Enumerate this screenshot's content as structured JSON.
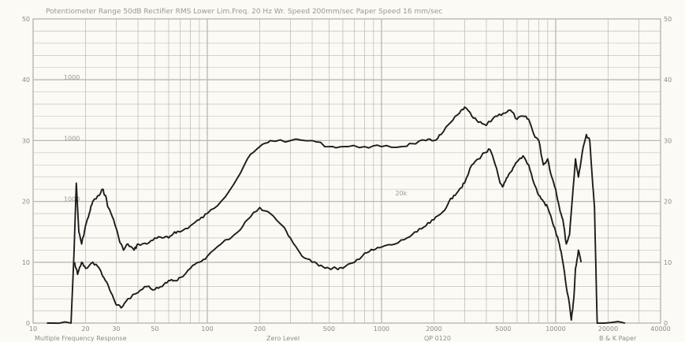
{
  "header": {
    "text": "Potentiometer Range 50dB Rectifier RMS Lower Lim.Freq. 20 Hz Wr. Speed 200mm/sec Paper Speed 16 mm/sec"
  },
  "footer": {
    "left": "Multiple Frequency Response",
    "center": "Zero Level",
    "code": "QP 0120",
    "right": "B & K Paper"
  },
  "colors": {
    "paper": "#fbfaf4",
    "grid": "#b9b9ae",
    "trace": "#1c1c1c"
  },
  "chart_data": {
    "type": "line",
    "title": "",
    "xlabel": "",
    "ylabel": "",
    "x_scale": "log",
    "xlim": [
      10,
      40000
    ],
    "ylim": [
      0,
      50
    ],
    "grid": true,
    "x_ticks": [
      {
        "value": 10,
        "label": "10"
      },
      {
        "value": 20,
        "label": "20"
      },
      {
        "value": 30,
        "label": "30"
      },
      {
        "value": 50,
        "label": "50"
      },
      {
        "value": 100,
        "label": "100"
      },
      {
        "value": 200,
        "label": "200"
      },
      {
        "value": 500,
        "label": "500"
      },
      {
        "value": 1000,
        "label": "1000"
      },
      {
        "value": 2000,
        "label": "2000"
      },
      {
        "value": 5000,
        "label": "5000"
      },
      {
        "value": 10000,
        "label": "10000"
      },
      {
        "value": 20000,
        "label": "20000"
      },
      {
        "value": 40000,
        "label": "40000"
      }
    ],
    "y_ticks_left": [
      {
        "value": 0,
        "label": "0"
      },
      {
        "value": 10,
        "label": "10"
      },
      {
        "value": 20,
        "label": "20"
      },
      {
        "value": 30,
        "label": "30"
      },
      {
        "value": 40,
        "label": "40"
      },
      {
        "value": 50,
        "label": "50"
      }
    ],
    "y_ticks_right": [
      {
        "value": 0,
        "label": "0"
      },
      {
        "value": 10,
        "label": "10"
      },
      {
        "value": 20,
        "label": "20"
      },
      {
        "value": 30,
        "label": "30"
      },
      {
        "value": 40,
        "label": "40"
      },
      {
        "value": 50,
        "label": "50"
      }
    ],
    "annotations": [
      {
        "text": "1000",
        "x": 15,
        "y": 40
      },
      {
        "text": "1000",
        "x": 15,
        "y": 30
      },
      {
        "text": "1000",
        "x": 15,
        "y": 20
      },
      {
        "text": "20k",
        "x": 1200,
        "y": 21
      }
    ],
    "series": [
      {
        "points": [
          [
            12,
            0
          ],
          [
            16.5,
            0
          ],
          [
            17.2,
            12
          ],
          [
            17.7,
            23
          ],
          [
            18.3,
            15
          ],
          [
            19,
            13
          ],
          [
            20,
            16
          ],
          [
            21,
            18
          ],
          [
            22,
            20
          ],
          [
            24,
            21
          ],
          [
            25,
            22
          ],
          [
            26,
            21
          ],
          [
            27,
            19
          ],
          [
            29,
            17
          ],
          [
            31,
            14
          ],
          [
            33,
            12
          ],
          [
            35,
            13
          ],
          [
            38,
            12
          ],
          [
            40,
            13
          ],
          [
            45,
            13
          ],
          [
            50,
            14
          ],
          [
            55,
            14
          ],
          [
            60,
            14
          ],
          [
            65,
            15
          ],
          [
            70,
            15
          ],
          [
            80,
            16
          ],
          [
            90,
            17
          ],
          [
            100,
            18
          ],
          [
            120,
            20
          ],
          [
            150,
            24
          ],
          [
            170,
            27
          ],
          [
            200,
            29
          ],
          [
            230,
            30
          ],
          [
            300,
            30
          ],
          [
            400,
            30
          ],
          [
            500,
            29
          ],
          [
            600,
            29
          ],
          [
            800,
            29
          ],
          [
            1000,
            29
          ],
          [
            1300,
            29
          ],
          [
            1500,
            29.5
          ],
          [
            1800,
            30
          ],
          [
            2000,
            30
          ],
          [
            2200,
            31
          ],
          [
            2500,
            33
          ],
          [
            2800,
            34.5
          ],
          [
            3000,
            35.5
          ],
          [
            3300,
            34
          ],
          [
            3600,
            33
          ],
          [
            4000,
            32.5
          ],
          [
            4500,
            34
          ],
          [
            5000,
            34.5
          ],
          [
            5500,
            35
          ],
          [
            6000,
            33.5
          ],
          [
            6500,
            34
          ],
          [
            7000,
            33.5
          ],
          [
            7500,
            31
          ],
          [
            8000,
            30
          ],
          [
            8500,
            26
          ],
          [
            9000,
            27
          ],
          [
            9500,
            24
          ],
          [
            10000,
            22
          ],
          [
            10500,
            19
          ],
          [
            11000,
            17
          ],
          [
            11500,
            13
          ],
          [
            12000,
            14.5
          ],
          [
            12500,
            21
          ],
          [
            13000,
            27
          ],
          [
            13500,
            24
          ],
          [
            14200,
            28
          ],
          [
            15000,
            31
          ],
          [
            15700,
            30
          ],
          [
            16200,
            24
          ],
          [
            16700,
            19
          ],
          [
            17300,
            0
          ],
          [
            25000,
            0
          ]
        ]
      },
      {
        "points": [
          [
            17.3,
            10
          ],
          [
            18,
            8
          ],
          [
            19,
            10
          ],
          [
            20,
            9
          ],
          [
            22,
            10
          ],
          [
            24,
            9
          ],
          [
            26,
            7
          ],
          [
            28,
            5
          ],
          [
            30,
            3
          ],
          [
            32,
            2.5
          ],
          [
            35,
            4
          ],
          [
            40,
            5
          ],
          [
            45,
            6
          ],
          [
            50,
            5.5
          ],
          [
            55,
            6
          ],
          [
            60,
            7
          ],
          [
            65,
            7
          ],
          [
            70,
            7.5
          ],
          [
            80,
            9
          ],
          [
            90,
            10
          ],
          [
            100,
            11
          ],
          [
            120,
            13
          ],
          [
            150,
            15
          ],
          [
            170,
            17
          ],
          [
            200,
            19
          ],
          [
            230,
            18
          ],
          [
            270,
            16
          ],
          [
            300,
            14
          ],
          [
            350,
            11
          ],
          [
            400,
            10
          ],
          [
            450,
            9.5
          ],
          [
            500,
            9
          ],
          [
            550,
            9
          ],
          [
            600,
            9
          ],
          [
            700,
            10
          ],
          [
            800,
            11.5
          ],
          [
            900,
            12
          ],
          [
            1000,
            12.5
          ],
          [
            1200,
            13
          ],
          [
            1400,
            14
          ],
          [
            1600,
            15
          ],
          [
            1800,
            16
          ],
          [
            2000,
            17
          ],
          [
            2200,
            18
          ],
          [
            2400,
            19.5
          ],
          [
            2600,
            21
          ],
          [
            2800,
            22
          ],
          [
            3000,
            23
          ],
          [
            3300,
            26
          ],
          [
            3600,
            27
          ],
          [
            3900,
            28
          ],
          [
            4200,
            28.5
          ],
          [
            4500,
            26
          ],
          [
            4800,
            23
          ],
          [
            5000,
            22.5
          ],
          [
            5300,
            24
          ],
          [
            5600,
            25
          ],
          [
            6000,
            26.5
          ],
          [
            6500,
            27.5
          ],
          [
            7000,
            26
          ],
          [
            7500,
            23
          ],
          [
            8000,
            21
          ],
          [
            8500,
            20
          ],
          [
            9000,
            19
          ],
          [
            9500,
            17
          ],
          [
            10000,
            15
          ],
          [
            10500,
            13
          ],
          [
            11000,
            10
          ],
          [
            11500,
            6
          ],
          [
            12000,
            3
          ],
          [
            12300,
            0.5
          ],
          [
            12700,
            4
          ],
          [
            13000,
            9
          ],
          [
            13500,
            12
          ],
          [
            14000,
            10
          ]
        ]
      }
    ]
  }
}
